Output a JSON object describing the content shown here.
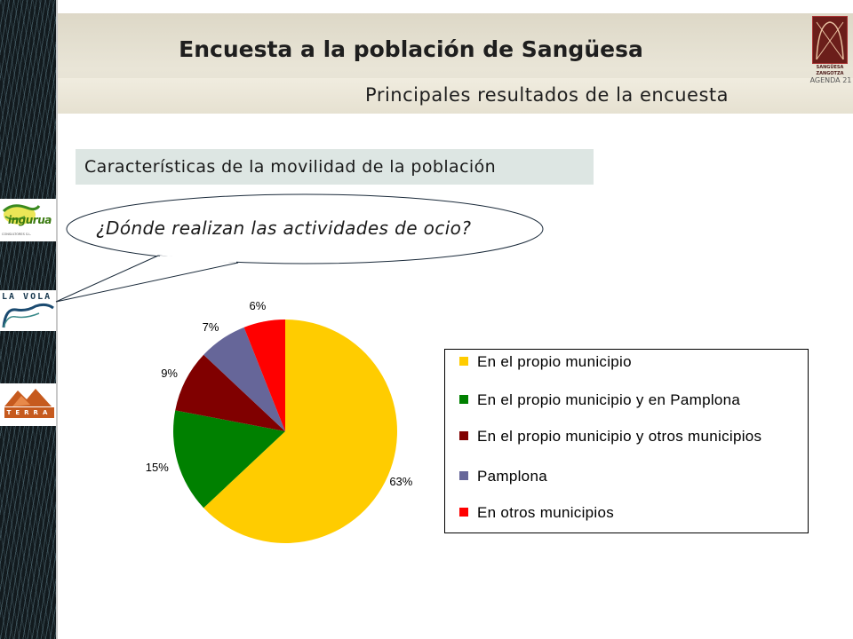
{
  "slide": {
    "title": "Encuesta a la población de Sangüesa",
    "subtitle": "Principales resultados de la encuesta",
    "section_heading": "Características de la movilidad de la población",
    "question": "¿Dónde realizan las actividades de ocio?"
  },
  "logos": {
    "ingurua": "ingurua",
    "ingurua_sub": "CONSULTORES S.L.",
    "lavola": "LA VOLA",
    "terra": "TERRA",
    "agenda_town1": "SANGÜESA",
    "agenda_town2": "ZANGOTZA",
    "agenda_text": "AGENDA 21"
  },
  "colors": {
    "yellow": "#FFCC00",
    "green": "#008000",
    "darkred": "#800000",
    "slate": "#666699",
    "red": "#FF0000"
  },
  "chart_data": {
    "type": "pie",
    "start_angle_deg": 0,
    "direction": "clockwise",
    "legend_position": "right",
    "slices": [
      {
        "label": "En el propio municipio",
        "value": 63,
        "label_text": "63%",
        "color": "#FFCC00"
      },
      {
        "label": "En el propio municipio y en Pamplona",
        "value": 15,
        "label_text": "15%",
        "color": "#008000"
      },
      {
        "label": "En el propio municipio y otros municipios",
        "value": 9,
        "label_text": "9%",
        "color": "#800000"
      },
      {
        "label": "Pamplona",
        "value": 7,
        "label_text": "7%",
        "color": "#666699"
      },
      {
        "label": "En otros municipios",
        "value": 6,
        "label_text": "6%",
        "color": "#FF0000"
      }
    ]
  }
}
